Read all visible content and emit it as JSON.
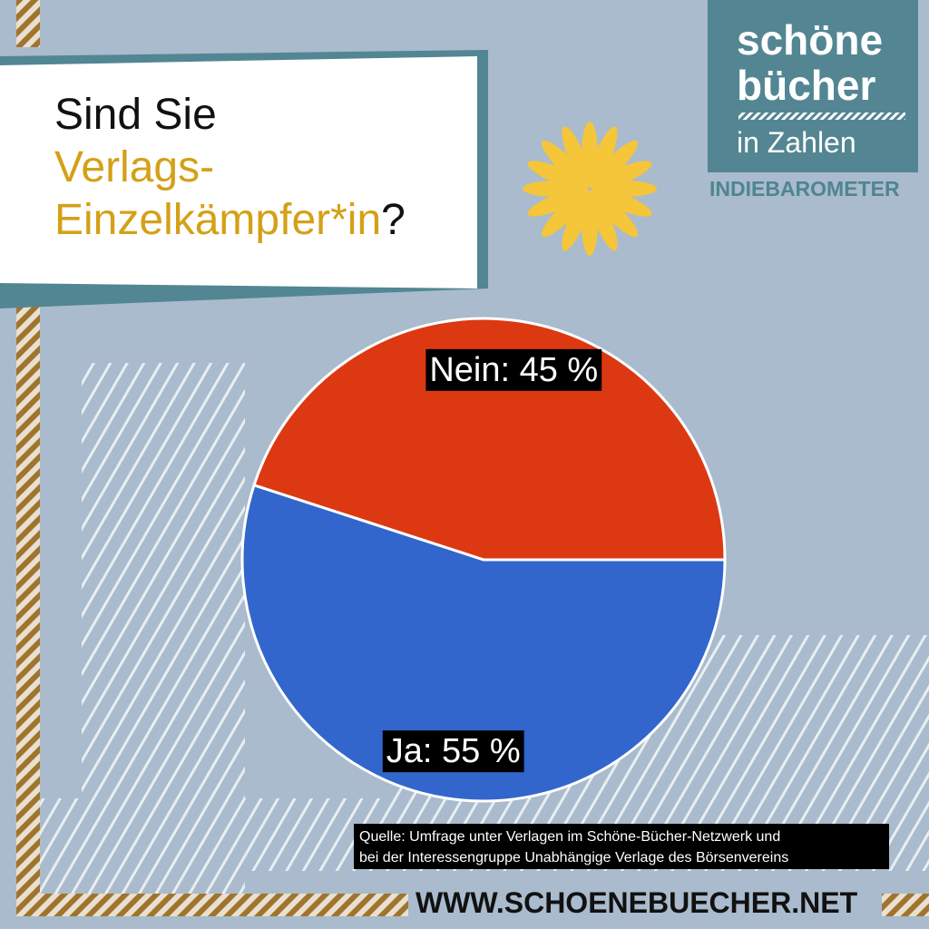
{
  "heading": {
    "line1": "Sind Sie",
    "line2": "Verlags-",
    "line3": "Einzelkämpfer*in",
    "line3_end": "?"
  },
  "brand": {
    "line1": "schöne",
    "line2": "bücher",
    "subtitle": "in Zahlen",
    "series_name": "INDIEBAROMETER"
  },
  "chart_data": {
    "type": "pie",
    "values": [
      45,
      55
    ],
    "value_labels": [
      "Nein: 45 %",
      "Ja: 55 %"
    ],
    "colors": [
      "#dc3913",
      "#3266cc"
    ]
  },
  "source": {
    "line1": "Quelle: Umfrage unter Verlagen im Schöne-Bücher-Netzwerk und",
    "line2": "bei der Interessengruppe Unabhängige Verlage des Börsenvereins"
  },
  "url": "WWW.SCHOENEBUECHER.NET"
}
